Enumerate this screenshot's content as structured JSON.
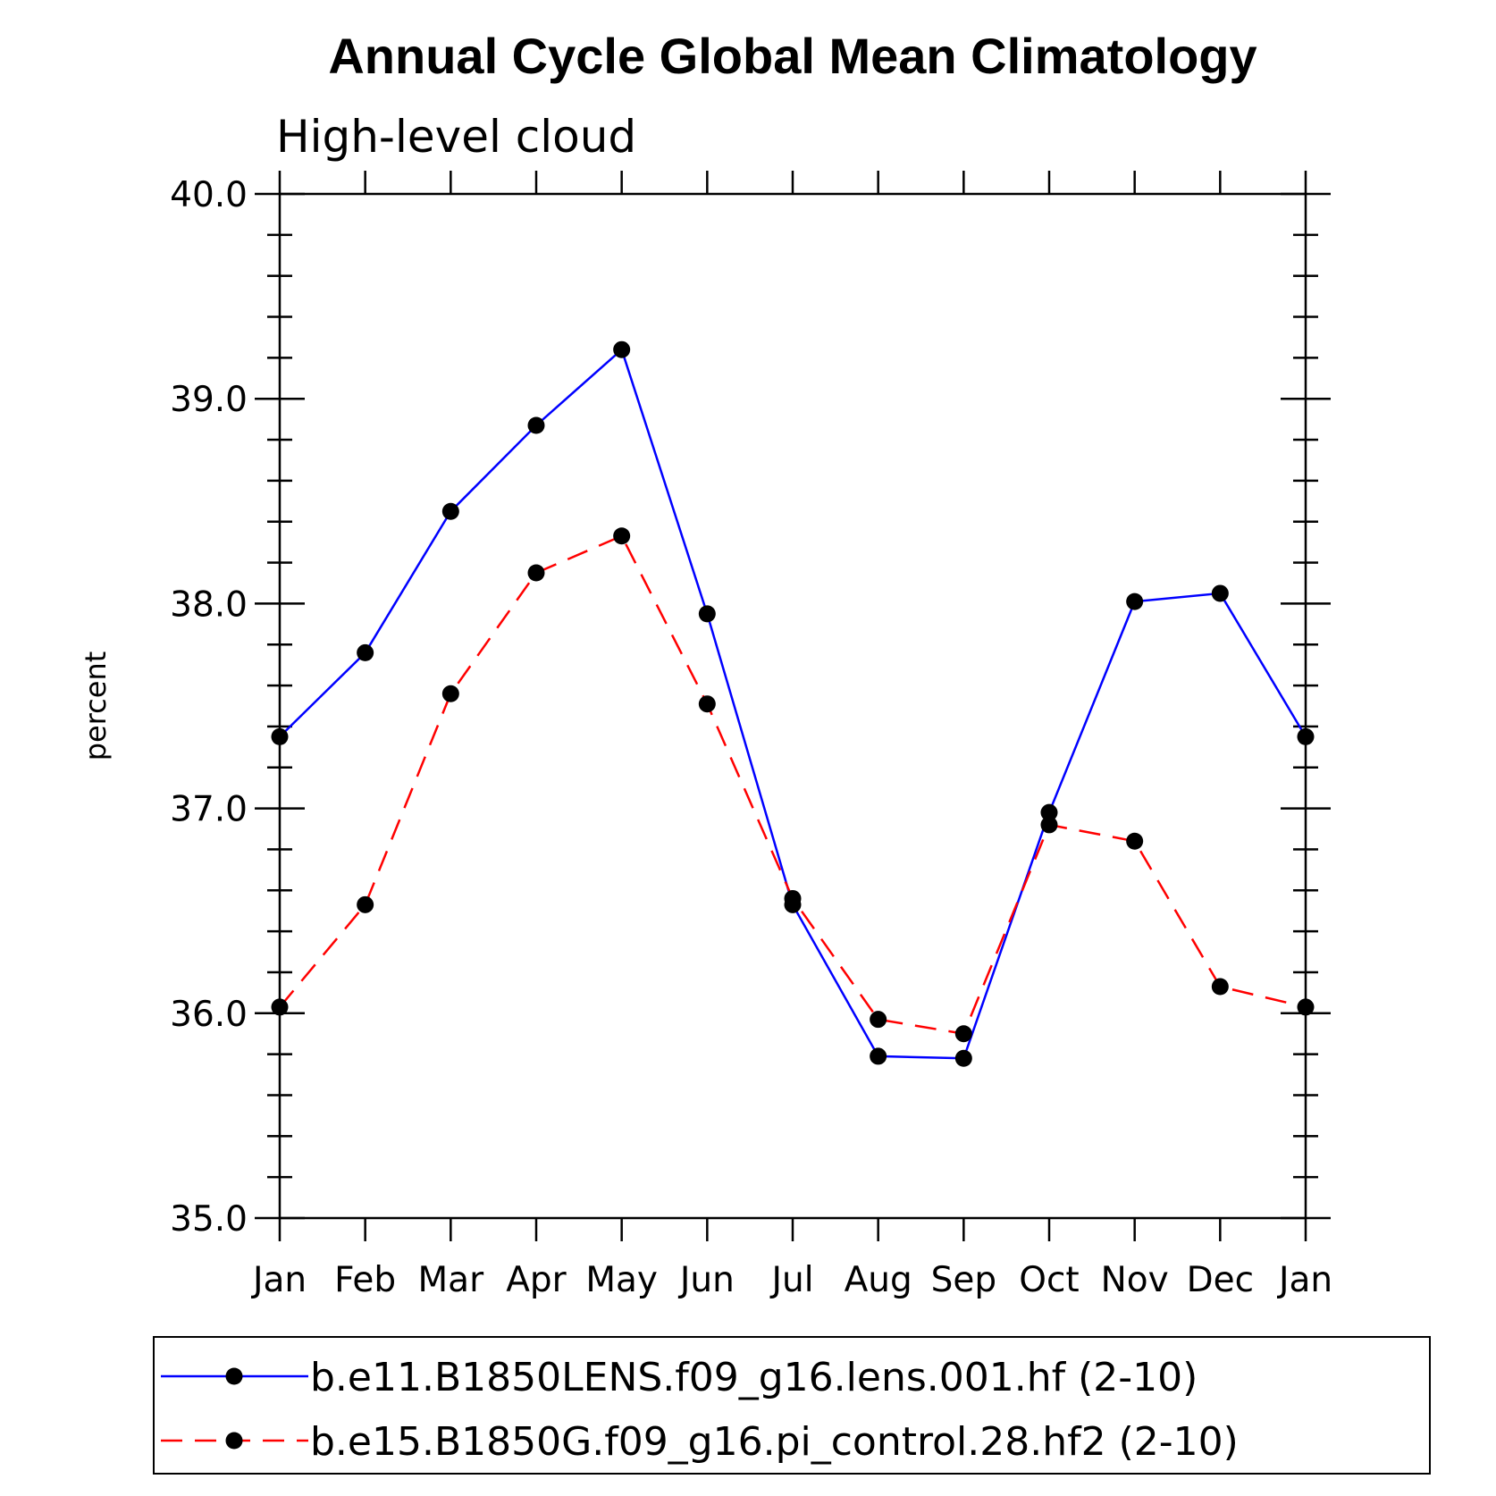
{
  "chart_data": {
    "type": "line",
    "title": "Annual Cycle Global Mean Climatology",
    "subtitle": "High-level cloud",
    "xlabel": "",
    "ylabel": "percent",
    "ylim": [
      35.0,
      40.0
    ],
    "yticks": [
      "35.0",
      "36.0",
      "37.0",
      "38.0",
      "39.0",
      "40.0"
    ],
    "categories": [
      "Jan",
      "Feb",
      "Mar",
      "Apr",
      "May",
      "Jun",
      "Jul",
      "Aug",
      "Sep",
      "Oct",
      "Nov",
      "Dec",
      "Jan"
    ],
    "series": [
      {
        "name": "b.e11.B1850LENS.f09_g16.lens.001.hf (2-10)",
        "color": "#0000ff",
        "dash": "solid",
        "marker": "filled-circle",
        "values": [
          37.35,
          37.76,
          38.45,
          38.87,
          39.24,
          37.95,
          36.53,
          35.79,
          35.78,
          36.98,
          38.01,
          38.05,
          37.35
        ]
      },
      {
        "name": "b.e15.B1850G.f09_g16.pi_control.28.hf2 (2-10)",
        "color": "#ff0000",
        "dash": "dashed",
        "marker": "filled-circle",
        "values": [
          36.03,
          36.53,
          37.56,
          38.15,
          38.33,
          37.51,
          36.56,
          35.97,
          35.9,
          36.92,
          36.84,
          36.13,
          36.03
        ]
      }
    ],
    "legend": "bottom"
  }
}
